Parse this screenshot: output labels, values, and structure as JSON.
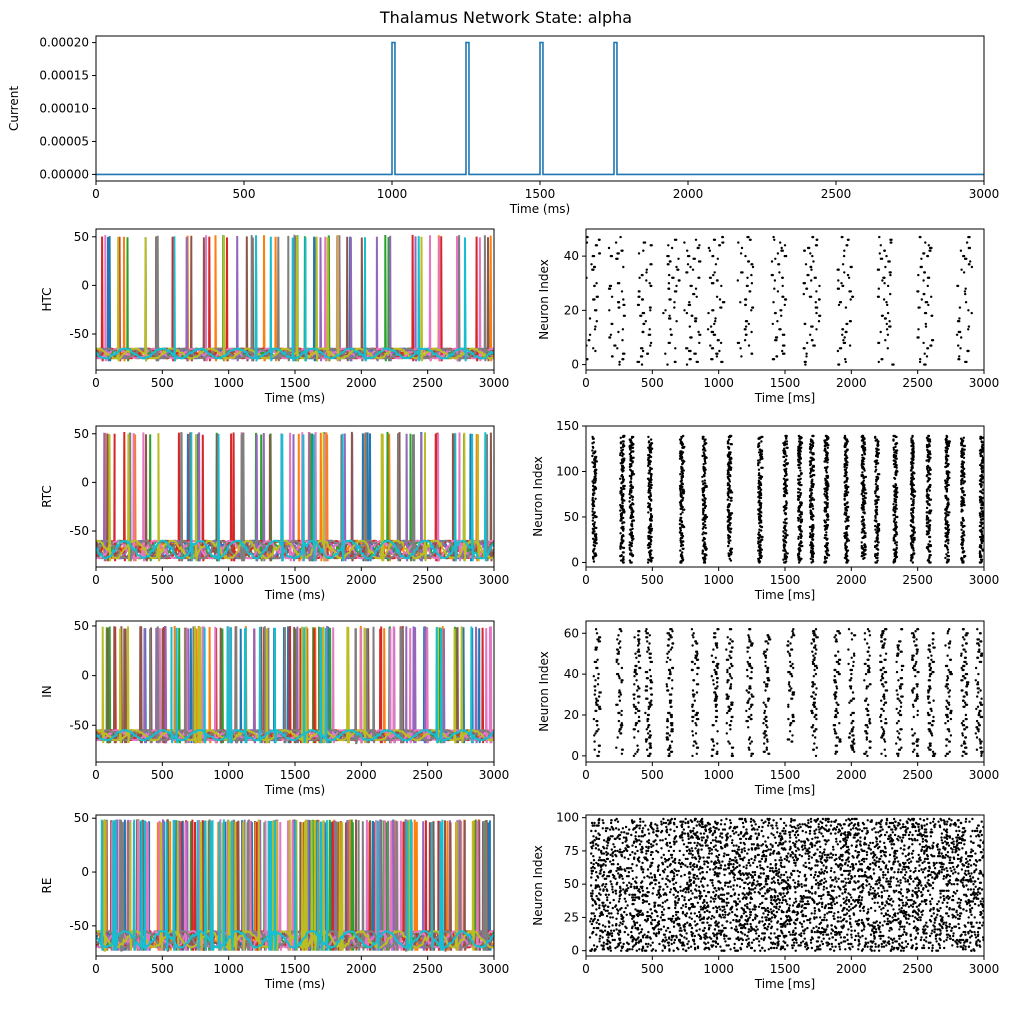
{
  "figure": {
    "title": "Thalamus Network State: alpha"
  },
  "chart_data": [
    {
      "id": "stimulus",
      "type": "line",
      "xlabel": "Time (ms)",
      "ylabel": "Current",
      "xlim": [
        0,
        3000
      ],
      "ylim": [
        -1e-05,
        0.00021
      ],
      "xticks": [
        0,
        500,
        1000,
        1500,
        2000,
        2500,
        3000
      ],
      "yticks": [
        0,
        5e-05,
        0.0001,
        0.00015,
        0.0002
      ],
      "ytick_labels": [
        "0.00000",
        "0.00005",
        "0.00010",
        "0.00015",
        "0.00020"
      ],
      "color": "#1f77b4",
      "pulses": [
        {
          "start": 1000,
          "end": 1010,
          "amplitude": 0.0002
        },
        {
          "start": 1250,
          "end": 1260,
          "amplitude": 0.0002
        },
        {
          "start": 1500,
          "end": 1510,
          "amplitude": 0.0002
        },
        {
          "start": 1750,
          "end": 1760,
          "amplitude": 0.0002
        }
      ]
    },
    {
      "id": "htc-voltage",
      "type": "line",
      "population": "HTC",
      "ylabel": "HTC",
      "xlabel": "Time (ms)",
      "xlim": [
        0,
        3000
      ],
      "ylim": [
        -87,
        58
      ],
      "xticks": [
        0,
        500,
        1000,
        1500,
        2000,
        2500,
        3000
      ],
      "yticks": [
        -50,
        0,
        50
      ],
      "spike_peak": 52,
      "rest": -75,
      "trough": -65,
      "series_count": 10,
      "spikes_per_trace": 8
    },
    {
      "id": "htc-raster",
      "type": "scatter",
      "population": "HTC",
      "ylabel": "Neuron Index",
      "xlabel": "Time [ms]",
      "xlim": [
        0,
        3000
      ],
      "ylim": [
        -2,
        50
      ],
      "xticks": [
        0,
        500,
        1000,
        1500,
        2000,
        2500,
        3000
      ],
      "yticks": [
        0,
        20,
        40
      ],
      "neurons": 48,
      "burst_times": [
        40,
        230,
        440,
        640,
        800,
        980,
        1200,
        1450,
        1700,
        1950,
        2250,
        2550,
        2850
      ],
      "jitter": 120
    },
    {
      "id": "rtc-voltage",
      "type": "line",
      "population": "RTC",
      "ylabel": "RTC",
      "xlabel": "Time (ms)",
      "xlim": [
        0,
        3000
      ],
      "ylim": [
        -87,
        58
      ],
      "xticks": [
        0,
        500,
        1000,
        1500,
        2000,
        2500,
        3000
      ],
      "yticks": [
        -50,
        0,
        50
      ],
      "spike_peak": 52,
      "rest": -78,
      "trough": -60,
      "series_count": 10,
      "spikes_per_trace": 10
    },
    {
      "id": "rtc-raster",
      "type": "scatter",
      "population": "RTC",
      "ylabel": "Neuron Index",
      "xlabel": "Time [ms]",
      "xlim": [
        0,
        3000
      ],
      "ylim": [
        -5,
        150
      ],
      "xticks": [
        0,
        500,
        1000,
        1500,
        2000,
        2500,
        3000
      ],
      "yticks": [
        0,
        50,
        100,
        150
      ],
      "neurons": 140,
      "burst_times": [
        60,
        270,
        340,
        480,
        720,
        890,
        1080,
        1310,
        1500,
        1610,
        1700,
        1810,
        1960,
        2090,
        2190,
        2330,
        2460,
        2580,
        2720,
        2840,
        2980
      ],
      "jitter": 25
    },
    {
      "id": "in-voltage",
      "type": "line",
      "population": "IN",
      "ylabel": "IN",
      "xlabel": "Time (ms)",
      "xlim": [
        0,
        3000
      ],
      "ylim": [
        -87,
        55
      ],
      "xticks": [
        0,
        500,
        1000,
        1500,
        2000,
        2500,
        3000
      ],
      "yticks": [
        -50,
        0,
        50
      ],
      "spike_peak": 50,
      "rest": -65,
      "trough": -55,
      "series_count": 10,
      "spikes_per_trace": 16
    },
    {
      "id": "in-raster",
      "type": "scatter",
      "population": "IN",
      "ylabel": "Neuron Index",
      "xlabel": "Time [ms]",
      "xlim": [
        0,
        3000
      ],
      "ylim": [
        -3,
        66
      ],
      "xticks": [
        0,
        500,
        1000,
        1500,
        2000,
        2500,
        3000
      ],
      "yticks": [
        0,
        20,
        40,
        60
      ],
      "neurons": 63,
      "burst_times": [
        80,
        250,
        380,
        470,
        630,
        820,
        970,
        1080,
        1230,
        1360,
        1540,
        1720,
        1890,
        2000,
        2120,
        2240,
        2360,
        2480,
        2600,
        2730,
        2850,
        2960
      ],
      "jitter": 45
    },
    {
      "id": "re-voltage",
      "type": "line",
      "population": "RE",
      "ylabel": "RE",
      "xlabel": "Time (ms)",
      "xlim": [
        0,
        3000
      ],
      "ylim": [
        -78,
        53
      ],
      "xticks": [
        0,
        500,
        1000,
        1500,
        2000,
        2500,
        3000
      ],
      "yticks": [
        -50,
        0,
        50
      ],
      "spike_peak": 49,
      "rest": -70,
      "trough": -55,
      "series_count": 10,
      "spikes_per_trace": 28
    },
    {
      "id": "re-raster",
      "type": "scatter",
      "population": "RE",
      "ylabel": "Neuron Index",
      "xlabel": "Time [ms]",
      "xlim": [
        0,
        3000
      ],
      "ylim": [
        -4,
        102
      ],
      "xticks": [
        0,
        500,
        1000,
        1500,
        2000,
        2500,
        3000
      ],
      "yticks": [
        0,
        25,
        50,
        75,
        100
      ],
      "neurons": 100,
      "burst_times": [],
      "jitter": 0,
      "spikes_per_neuron": 45
    }
  ],
  "palette": [
    "#1f77b4",
    "#ff7f0e",
    "#2ca02c",
    "#d62728",
    "#9467bd",
    "#8c564b",
    "#e377c2",
    "#7f7f7f",
    "#bcbd22",
    "#17becf"
  ]
}
